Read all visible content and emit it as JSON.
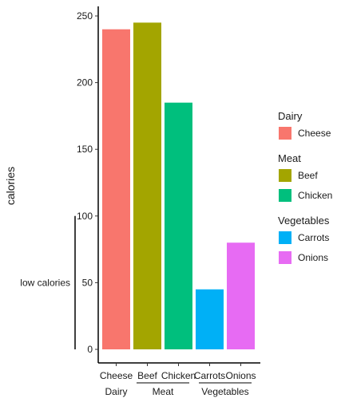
{
  "chart_data": {
    "type": "bar",
    "ylabel": "calories",
    "ylim": [
      0,
      250
    ],
    "yticks": [
      0,
      50,
      100,
      150,
      200,
      250
    ],
    "categories": [
      "Cheese",
      "Beef",
      "Chicken",
      "Carrots",
      "Onions"
    ],
    "values": [
      240,
      245,
      185,
      45,
      80
    ],
    "colors": [
      "#F8766D",
      "#A3A500",
      "#00BF7D",
      "#00B0F6",
      "#E76BF3"
    ],
    "groups": [
      {
        "name": "Dairy",
        "items": [
          "Cheese"
        ]
      },
      {
        "name": "Meat",
        "items": [
          "Beef",
          "Chicken"
        ]
      },
      {
        "name": "Vegetables",
        "items": [
          "Carrots",
          "Onions"
        ]
      }
    ],
    "legend": [
      {
        "title": "Dairy",
        "entries": [
          {
            "label": "Cheese",
            "color": "#F8766D"
          }
        ]
      },
      {
        "title": "Meat",
        "entries": [
          {
            "label": "Beef",
            "color": "#A3A500"
          },
          {
            "label": "Chicken",
            "color": "#00BF7D"
          }
        ]
      },
      {
        "title": "Vegetables",
        "entries": [
          {
            "label": "Carrots",
            "color": "#00B0F6"
          },
          {
            "label": "Onions",
            "color": "#E76BF3"
          }
        ]
      }
    ],
    "legend_position": "right",
    "annotations": [
      {
        "label": "low calories",
        "from": 0,
        "to": 100
      }
    ],
    "grid": false
  }
}
